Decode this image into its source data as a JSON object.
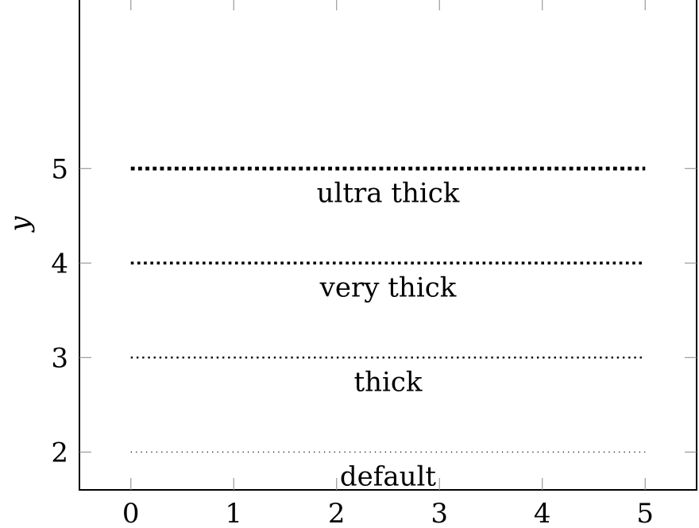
{
  "chart_data": {
    "type": "line",
    "title": "",
    "xlabel": "",
    "ylabel": "y",
    "xlim": [
      -0.5,
      5.5
    ],
    "ylim": [
      1.6,
      6.8
    ],
    "x_ticks": [
      "0",
      "1",
      "2",
      "3",
      "4",
      "5"
    ],
    "y_ticks": [
      "2",
      "3",
      "4",
      "5"
    ],
    "grid": false,
    "series": [
      {
        "label": "default",
        "style": "dotted",
        "weight": "default",
        "x": [
          0,
          5
        ],
        "y": [
          2,
          2
        ]
      },
      {
        "label": "thick",
        "style": "dotted",
        "weight": "thick",
        "x": [
          0,
          5
        ],
        "y": [
          3,
          3
        ]
      },
      {
        "label": "very thick",
        "style": "dotted",
        "weight": "very thick",
        "x": [
          0,
          5
        ],
        "y": [
          4,
          4
        ]
      },
      {
        "label": "ultra thick",
        "style": "dotted",
        "weight": "ultra thick",
        "x": [
          0,
          5
        ],
        "y": [
          5,
          5
        ]
      }
    ],
    "colors": {
      "line": "#000000",
      "axis": "#000000",
      "tick": "#9a9a9a"
    }
  }
}
